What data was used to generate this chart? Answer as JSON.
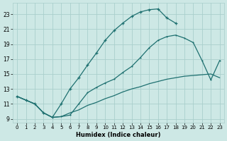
{
  "xlabel": "Humidex (Indice chaleur)",
  "bg_color": "#cde8e5",
  "grid_color": "#aacfcc",
  "line_color": "#1e7070",
  "xlim": [
    -0.5,
    23.5
  ],
  "ylim": [
    8.5,
    24.5
  ],
  "xticks": [
    0,
    1,
    2,
    3,
    4,
    5,
    6,
    7,
    8,
    9,
    10,
    11,
    12,
    13,
    14,
    15,
    16,
    17,
    18,
    19,
    20,
    21,
    22,
    23
  ],
  "yticks": [
    9,
    11,
    13,
    15,
    17,
    19,
    21,
    23
  ],
  "curve1_x": [
    0,
    1,
    2,
    3,
    4,
    5,
    6,
    7,
    8,
    9,
    10,
    11,
    12,
    13,
    14,
    15,
    16,
    17,
    18
  ],
  "curve1_y": [
    12.0,
    11.5,
    11.0,
    9.8,
    9.2,
    11.0,
    13.0,
    14.5,
    16.2,
    17.8,
    19.5,
    20.8,
    21.8,
    22.7,
    23.3,
    23.6,
    23.7,
    22.5,
    21.8
  ],
  "curve2_x": [
    0,
    1,
    2,
    3,
    4,
    5,
    6,
    7,
    8,
    9,
    10,
    11,
    12,
    13,
    14,
    15,
    16,
    17,
    18,
    19,
    20,
    21,
    22,
    23
  ],
  "curve2_y": [
    12.0,
    11.5,
    11.0,
    9.8,
    9.2,
    9.3,
    9.5,
    11.0,
    12.5,
    13.2,
    13.8,
    14.3,
    15.2,
    16.0,
    17.2,
    18.5,
    19.5,
    20.0,
    20.2,
    19.8,
    19.2,
    16.8,
    14.2,
    16.8
  ],
  "curve3_x": [
    0,
    1,
    2,
    3,
    4,
    5,
    6,
    7,
    8,
    9,
    10,
    11,
    12,
    13,
    14,
    15,
    16,
    17,
    18,
    19,
    20,
    21,
    22,
    23
  ],
  "curve3_y": [
    12.0,
    11.5,
    11.0,
    9.8,
    9.2,
    9.3,
    9.8,
    10.2,
    10.8,
    11.2,
    11.7,
    12.1,
    12.6,
    13.0,
    13.3,
    13.7,
    14.0,
    14.3,
    14.5,
    14.7,
    14.8,
    14.9,
    15.0,
    14.5
  ]
}
